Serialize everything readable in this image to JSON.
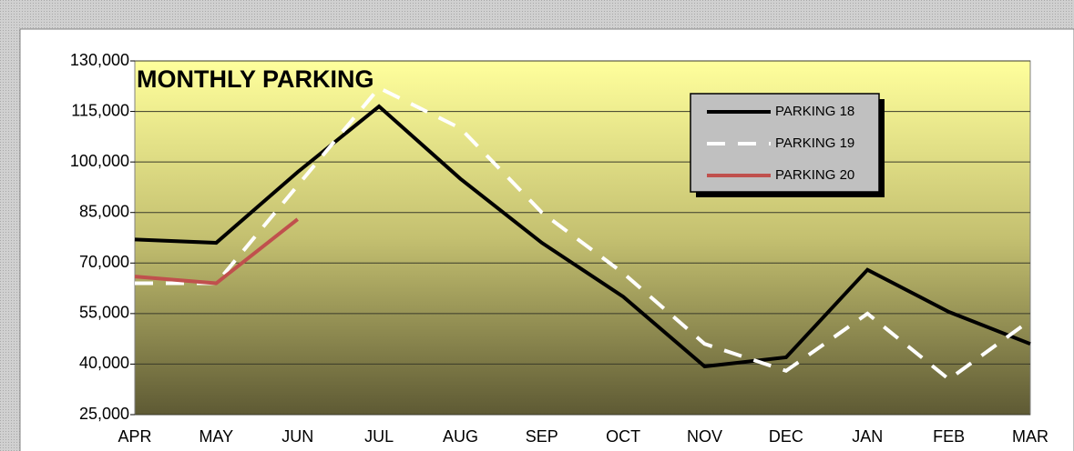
{
  "chart_data": {
    "type": "line",
    "title": "MONTHLY PARKING",
    "categories": [
      "APR",
      "MAY",
      "JUN",
      "JUL",
      "AUG",
      "SEP",
      "OCT",
      "NOV",
      "DEC",
      "JAN",
      "FEB",
      "MAR"
    ],
    "series": [
      {
        "name": "PARKING 18",
        "color": "#000000",
        "style": "solid",
        "values": [
          77000,
          76000,
          97000,
          116500,
          95000,
          76000,
          60000,
          39300,
          42000,
          68000,
          55500,
          46000
        ]
      },
      {
        "name": "PARKING 19",
        "color": "#ffffff",
        "style": "dashed",
        "values": [
          64000,
          64000,
          93000,
          122000,
          110000,
          85000,
          67000,
          46000,
          38000,
          55000,
          35500,
          53000
        ]
      },
      {
        "name": "PARKING 20",
        "color": "#c0504d",
        "style": "solid",
        "values": [
          66000,
          64000,
          83000,
          null,
          null,
          null,
          null,
          null,
          null,
          null,
          null,
          null
        ]
      }
    ],
    "ylim": [
      25000,
      130000
    ],
    "yticks": [
      {
        "value": 25000,
        "label": "25,000"
      },
      {
        "value": 40000,
        "label": "40,000"
      },
      {
        "value": 55000,
        "label": "55,000"
      },
      {
        "value": 70000,
        "label": "70,000"
      },
      {
        "value": 85000,
        "label": "85,000"
      },
      {
        "value": 100000,
        "label": "100,000"
      },
      {
        "value": 115000,
        "label": "115,000"
      },
      {
        "value": 130000,
        "label": "130,000"
      }
    ],
    "grid": true,
    "legend": "upper right"
  }
}
